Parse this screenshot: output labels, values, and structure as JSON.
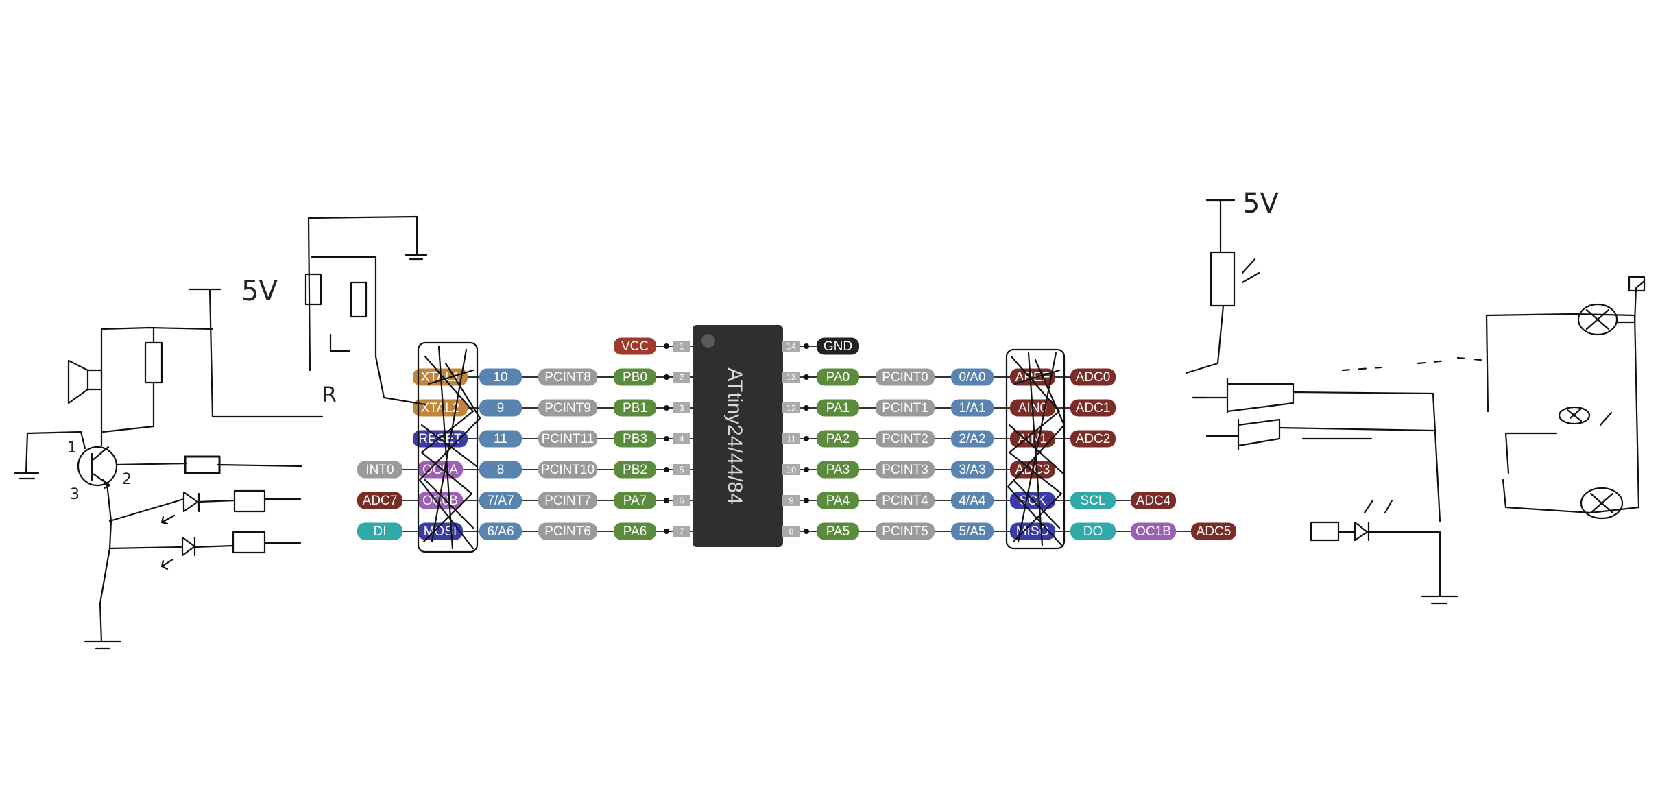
{
  "chip": {
    "name": "ATtiny24/44/84",
    "body_color": "#2f2f2f"
  },
  "colors": {
    "power": "#a03a2c",
    "ground": "#222222",
    "port": "#5b8c3e",
    "pcint": "#9a9a9a",
    "arduino": "#5a84b0",
    "xtal": "#c0853a",
    "reset": "#3a3aa8",
    "adc": "#7a2d26",
    "timer": "#9b5fb5",
    "spi": "#3a3aa8",
    "usi": "#2fa9a9",
    "int": "#9a9a9a",
    "pin_box": "#aaaaaa"
  },
  "left_pins": [
    {
      "num": "1",
      "port": "VCC",
      "port_type": "power",
      "pcint": "",
      "arduino": "",
      "extra": []
    },
    {
      "num": "2",
      "port": "PB0",
      "port_type": "port",
      "pcint": "PCINT8",
      "arduino": "10",
      "extra": [
        {
          "label": "XTAL1",
          "type": "xtal"
        }
      ]
    },
    {
      "num": "3",
      "port": "PB1",
      "port_type": "port",
      "pcint": "PCINT9",
      "arduino": "9",
      "extra": [
        {
          "label": "XTAL2",
          "type": "xtal"
        }
      ]
    },
    {
      "num": "4",
      "port": "PB3",
      "port_type": "port",
      "pcint": "PCINT11",
      "arduino": "11",
      "extra": [
        {
          "label": "RESET",
          "type": "reset"
        }
      ]
    },
    {
      "num": "5",
      "port": "PB2",
      "port_type": "port",
      "pcint": "PCINT10",
      "arduino": "8",
      "extra": [
        {
          "label": "OC0A",
          "type": "timer"
        },
        {
          "label": "INT0",
          "type": "int"
        }
      ]
    },
    {
      "num": "6",
      "port": "PA7",
      "port_type": "port",
      "pcint": "PCINT7",
      "arduino": "7/A7",
      "extra": [
        {
          "label": "OC0B",
          "type": "timer"
        },
        {
          "label": "ADC7",
          "type": "adc"
        }
      ]
    },
    {
      "num": "7",
      "port": "PA6",
      "port_type": "port",
      "pcint": "PCINT6",
      "arduino": "6/A6",
      "extra": [
        {
          "label": "MOSI",
          "type": "spi"
        },
        {
          "label": "DI",
          "type": "usi"
        }
      ]
    }
  ],
  "right_pins": [
    {
      "num": "14",
      "port": "GND",
      "port_type": "ground",
      "pcint": "",
      "arduino": "",
      "extra": []
    },
    {
      "num": "13",
      "port": "PA0",
      "port_type": "port",
      "pcint": "PCINT0",
      "arduino": "0/A0",
      "extra": [
        {
          "label": "AREF",
          "type": "adc"
        },
        {
          "label": "ADC0",
          "type": "adc"
        }
      ]
    },
    {
      "num": "12",
      "port": "PA1",
      "port_type": "port",
      "pcint": "PCINT1",
      "arduino": "1/A1",
      "extra": [
        {
          "label": "AIN0",
          "type": "adc"
        },
        {
          "label": "ADC1",
          "type": "adc"
        }
      ]
    },
    {
      "num": "11",
      "port": "PA2",
      "port_type": "port",
      "pcint": "PCINT2",
      "arduino": "2/A2",
      "extra": [
        {
          "label": "AIN1",
          "type": "adc"
        },
        {
          "label": "ADC2",
          "type": "adc"
        }
      ]
    },
    {
      "num": "10",
      "port": "PA3",
      "port_type": "port",
      "pcint": "PCINT3",
      "arduino": "3/A3",
      "extra": [
        {
          "label": "ADC3",
          "type": "adc"
        }
      ]
    },
    {
      "num": "9",
      "port": "PA4",
      "port_type": "port",
      "pcint": "PCINT4",
      "arduino": "4/A4",
      "extra": [
        {
          "label": "SCK",
          "type": "spi"
        },
        {
          "label": "SCL",
          "type": "usi"
        },
        {
          "label": "ADC4",
          "type": "adc"
        }
      ]
    },
    {
      "num": "8",
      "port": "PA5",
      "port_type": "port",
      "pcint": "PCINT5",
      "arduino": "5/A5",
      "extra": [
        {
          "label": "MISO",
          "type": "spi"
        },
        {
          "label": "DO",
          "type": "usi"
        },
        {
          "label": "OC1B",
          "type": "timer"
        },
        {
          "label": "ADC5",
          "type": "adc"
        }
      ]
    }
  ],
  "annotations": {
    "supply_left": "5V",
    "supply_right": "5V",
    "resistor_note": "R",
    "transistor_pins": [
      "1",
      "2",
      "3"
    ]
  }
}
